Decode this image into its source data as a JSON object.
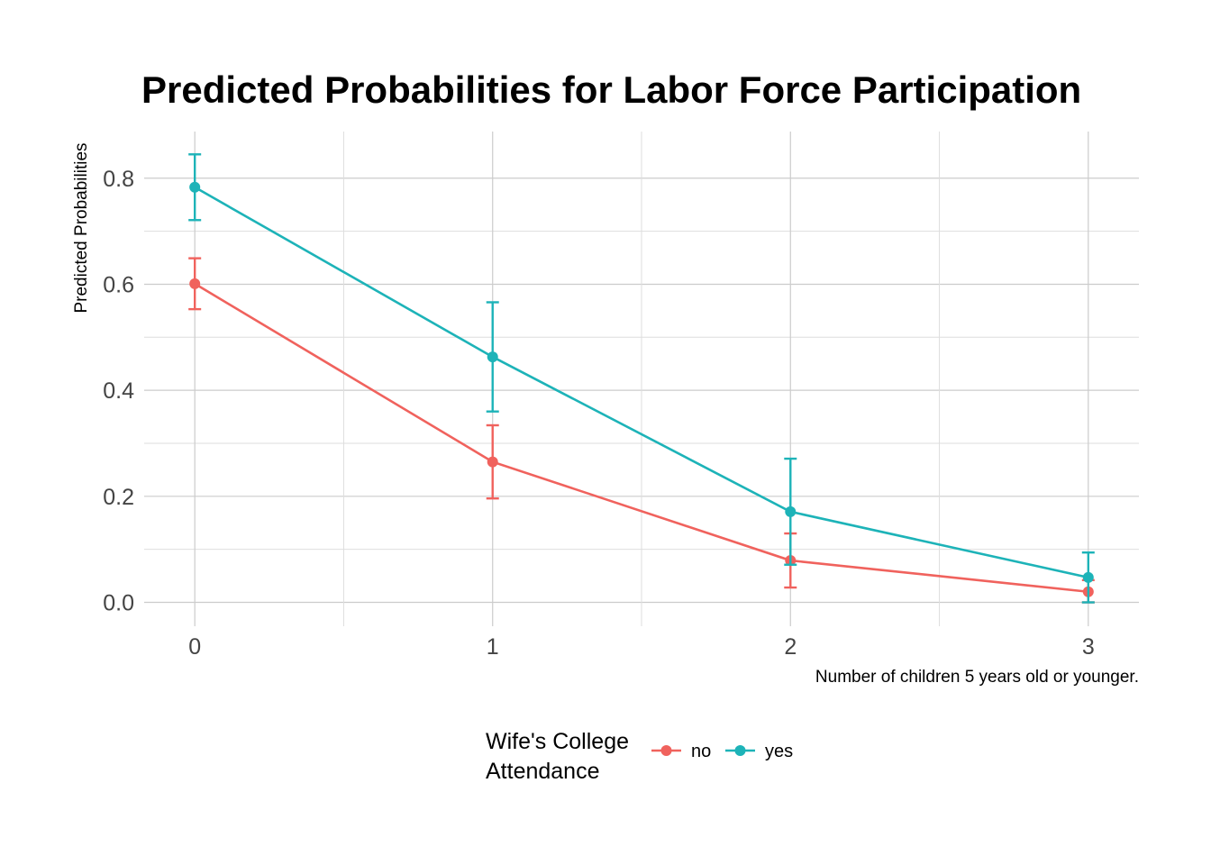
{
  "chart_data": {
    "type": "line",
    "title": "Predicted Probabilities for Labor Force Participation",
    "xlabel": "Number of children 5 years old or younger.",
    "ylabel": "Predicted Probabilities",
    "x": [
      0,
      1,
      2,
      3
    ],
    "x_ticks": [
      "0",
      "1",
      "2",
      "3"
    ],
    "y_ticks": [
      "0.0",
      "0.2",
      "0.4",
      "0.6",
      "0.8"
    ],
    "xlim": [
      -0.17,
      3.17
    ],
    "ylim": [
      -0.045,
      0.888
    ],
    "grid": true,
    "legend": {
      "title_lines": [
        "Wife's College",
        "Attendance"
      ],
      "placement": "bottom"
    },
    "series": [
      {
        "name": "no",
        "color": "#F0625D",
        "values": [
          0.601,
          0.265,
          0.079,
          0.02
        ],
        "lower": [
          0.553,
          0.196,
          0.028,
          0.0
        ],
        "upper": [
          0.649,
          0.334,
          0.13,
          0.042
        ]
      },
      {
        "name": "yes",
        "color": "#1DB3B8",
        "values": [
          0.783,
          0.463,
          0.171,
          0.047
        ],
        "lower": [
          0.721,
          0.36,
          0.071,
          0.0
        ],
        "upper": [
          0.845,
          0.566,
          0.271,
          0.094
        ]
      }
    ]
  }
}
